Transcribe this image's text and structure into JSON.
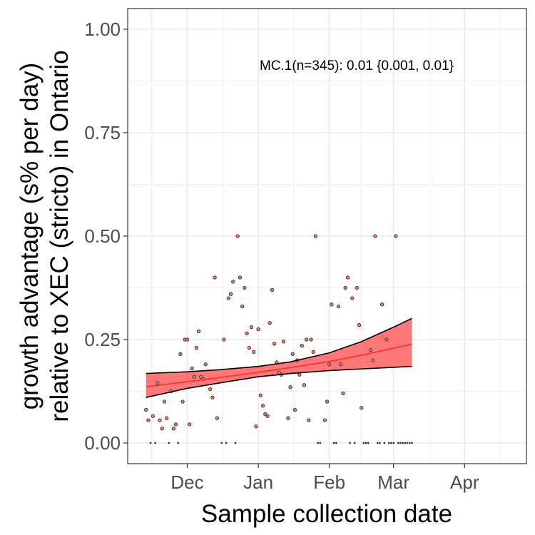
{
  "chart_data": {
    "type": "scatter",
    "xlabel": "Sample collection date",
    "ylabel": "growth advantage (s% per day)\nrelative to XEC (stricto) in Ontario",
    "x_tick_labels": [
      "Dec",
      "Jan",
      "Feb",
      "Mar",
      "Apr"
    ],
    "x_tick_dates": [
      "2024-12-01",
      "2025-01-01",
      "2025-02-01",
      "2025-03-01",
      "2025-04-01"
    ],
    "xlim": [
      "2024-11-05",
      "2025-04-28"
    ],
    "y_ticks": [
      0.0,
      0.25,
      0.5,
      0.75,
      1.0
    ],
    "y_tick_labels": [
      "0.00",
      "0.25",
      "0.50",
      "0.75",
      "1.00"
    ],
    "ylim": [
      -0.05,
      1.05
    ],
    "grid": true,
    "annotation": "MC.1(n=345): 0.01 {0.001, 0.01}",
    "colors": {
      "points_fill": "#f8766d",
      "points_stroke": "#333333",
      "band_fill": "#ff7070",
      "band_edge": "#000000",
      "fit_line": "#ff3333",
      "grid": "#ebebeb",
      "panel_border": "#333333"
    },
    "fit": {
      "x": [
        "2024-11-13",
        "2024-12-01",
        "2024-12-15",
        "2025-01-01",
        "2025-01-15",
        "2025-02-01",
        "2025-02-15",
        "2025-03-01",
        "2025-03-09"
      ],
      "y": [
        0.136,
        0.148,
        0.158,
        0.171,
        0.182,
        0.197,
        0.212,
        0.229,
        0.239
      ],
      "lower": [
        0.11,
        0.132,
        0.145,
        0.16,
        0.168,
        0.175,
        0.179,
        0.183,
        0.185
      ],
      "upper": [
        0.168,
        0.172,
        0.177,
        0.185,
        0.196,
        0.218,
        0.245,
        0.28,
        0.301
      ]
    },
    "points": [
      {
        "x": "2024-11-13",
        "y": 0.08
      },
      {
        "x": "2024-11-14",
        "y": 0.055
      },
      {
        "x": "2024-11-15",
        "y": 0.0
      },
      {
        "x": "2024-11-16",
        "y": 0.065
      },
      {
        "x": "2024-11-17",
        "y": 0.0
      },
      {
        "x": "2024-11-18",
        "y": 0.145
      },
      {
        "x": "2024-11-19",
        "y": 0.055
      },
      {
        "x": "2024-11-20",
        "y": 0.035
      },
      {
        "x": "2024-11-21",
        "y": 0.1
      },
      {
        "x": "2024-11-22",
        "y": 0.06
      },
      {
        "x": "2024-11-23",
        "y": 0.0
      },
      {
        "x": "2024-11-24",
        "y": 0.125
      },
      {
        "x": "2024-11-25",
        "y": 0.035
      },
      {
        "x": "2024-11-26",
        "y": 0.045
      },
      {
        "x": "2024-11-27",
        "y": 0.0
      },
      {
        "x": "2024-11-28",
        "y": 0.215
      },
      {
        "x": "2024-11-29",
        "y": 0.1
      },
      {
        "x": "2024-11-30",
        "y": 0.25
      },
      {
        "x": "2024-12-01",
        "y": 0.25
      },
      {
        "x": "2024-12-02",
        "y": 0.045
      },
      {
        "x": "2024-12-03",
        "y": 0.18
      },
      {
        "x": "2024-12-04",
        "y": 0.16
      },
      {
        "x": "2024-12-05",
        "y": 0.23
      },
      {
        "x": "2024-12-06",
        "y": 0.27
      },
      {
        "x": "2024-12-07",
        "y": 0.16
      },
      {
        "x": "2024-12-08",
        "y": 0.155
      },
      {
        "x": "2024-12-09",
        "y": 0.19
      },
      {
        "x": "2024-12-11",
        "y": 0.13
      },
      {
        "x": "2024-12-12",
        "y": 0.11
      },
      {
        "x": "2024-12-13",
        "y": 0.4
      },
      {
        "x": "2024-12-14",
        "y": 0.06
      },
      {
        "x": "2024-12-16",
        "y": 0.0
      },
      {
        "x": "2024-12-17",
        "y": 0.25
      },
      {
        "x": "2024-12-18",
        "y": 0.0
      },
      {
        "x": "2024-12-19",
        "y": 0.35
      },
      {
        "x": "2024-12-20",
        "y": 0.36
      },
      {
        "x": "2024-12-21",
        "y": 0.39
      },
      {
        "x": "2024-12-22",
        "y": 0.0
      },
      {
        "x": "2024-12-23",
        "y": 0.5
      },
      {
        "x": "2024-12-24",
        "y": 0.4
      },
      {
        "x": "2024-12-25",
        "y": 0.33
      },
      {
        "x": "2024-12-26",
        "y": 0.375
      },
      {
        "x": "2024-12-27",
        "y": 0.265
      },
      {
        "x": "2024-12-28",
        "y": 0.23
      },
      {
        "x": "2024-12-29",
        "y": 0.28
      },
      {
        "x": "2024-12-30",
        "y": 0.22
      },
      {
        "x": "2024-12-31",
        "y": 0.04
      },
      {
        "x": "2025-01-01",
        "y": 0.275
      },
      {
        "x": "2025-01-02",
        "y": 0.115
      },
      {
        "x": "2025-01-03",
        "y": 0.09
      },
      {
        "x": "2025-01-04",
        "y": 0.07
      },
      {
        "x": "2025-01-05",
        "y": 0.065
      },
      {
        "x": "2025-01-06",
        "y": 0.29
      },
      {
        "x": "2025-01-07",
        "y": 0.37
      },
      {
        "x": "2025-01-08",
        "y": 0.24
      },
      {
        "x": "2025-01-09",
        "y": 0.195
      },
      {
        "x": "2025-01-10",
        "y": 0.17
      },
      {
        "x": "2025-01-11",
        "y": 0.165
      },
      {
        "x": "2025-01-12",
        "y": 0.245
      },
      {
        "x": "2025-01-14",
        "y": 0.06
      },
      {
        "x": "2025-01-15",
        "y": 0.135
      },
      {
        "x": "2025-01-16",
        "y": 0.215
      },
      {
        "x": "2025-01-17",
        "y": 0.08
      },
      {
        "x": "2025-01-18",
        "y": 0.2
      },
      {
        "x": "2025-01-19",
        "y": 0.165
      },
      {
        "x": "2025-01-20",
        "y": 0.235
      },
      {
        "x": "2025-01-21",
        "y": 0.14
      },
      {
        "x": "2025-01-22",
        "y": 0.25
      },
      {
        "x": "2025-01-23",
        "y": 0.055
      },
      {
        "x": "2025-01-24",
        "y": 0.25
      },
      {
        "x": "2025-01-25",
        "y": 0.22
      },
      {
        "x": "2025-01-26",
        "y": 0.5
      },
      {
        "x": "2025-01-27",
        "y": 0.0
      },
      {
        "x": "2025-01-28",
        "y": 0.0
      },
      {
        "x": "2025-01-30",
        "y": 0.055
      },
      {
        "x": "2025-01-31",
        "y": 0.1
      },
      {
        "x": "2025-02-01",
        "y": 0.19
      },
      {
        "x": "2025-02-02",
        "y": 0.335
      },
      {
        "x": "2025-02-03",
        "y": 0.0
      },
      {
        "x": "2025-02-04",
        "y": 0.0
      },
      {
        "x": "2025-02-05",
        "y": 0.33
      },
      {
        "x": "2025-02-06",
        "y": 0.19
      },
      {
        "x": "2025-02-07",
        "y": 0.12
      },
      {
        "x": "2025-02-08",
        "y": 0.375
      },
      {
        "x": "2025-02-09",
        "y": 0.4
      },
      {
        "x": "2025-02-10",
        "y": 0.0
      },
      {
        "x": "2025-02-11",
        "y": 0.35
      },
      {
        "x": "2025-02-12",
        "y": 0.0
      },
      {
        "x": "2025-02-13",
        "y": 0.375
      },
      {
        "x": "2025-02-14",
        "y": 0.285
      },
      {
        "x": "2025-02-15",
        "y": 0.085
      },
      {
        "x": "2025-02-16",
        "y": 0.0
      },
      {
        "x": "2025-02-17",
        "y": 0.0
      },
      {
        "x": "2025-02-18",
        "y": 0.0
      },
      {
        "x": "2025-02-19",
        "y": 0.225
      },
      {
        "x": "2025-02-20",
        "y": 0.2
      },
      {
        "x": "2025-02-21",
        "y": 0.5
      },
      {
        "x": "2025-02-22",
        "y": 0.0
      },
      {
        "x": "2025-02-23",
        "y": 0.0
      },
      {
        "x": "2025-02-24",
        "y": 0.335
      },
      {
        "x": "2025-02-25",
        "y": 0.0
      },
      {
        "x": "2025-02-26",
        "y": 0.25
      },
      {
        "x": "2025-02-27",
        "y": 0.0
      },
      {
        "x": "2025-02-28",
        "y": 0.0
      },
      {
        "x": "2025-03-01",
        "y": 0.0
      },
      {
        "x": "2025-03-02",
        "y": 0.5
      },
      {
        "x": "2025-03-03",
        "y": 0.0
      },
      {
        "x": "2025-03-04",
        "y": 0.0
      },
      {
        "x": "2025-03-05",
        "y": 0.0
      },
      {
        "x": "2025-03-06",
        "y": 0.0
      },
      {
        "x": "2025-03-07",
        "y": 0.0
      },
      {
        "x": "2025-03-08",
        "y": 0.0
      },
      {
        "x": "2025-03-09",
        "y": 0.0
      }
    ]
  }
}
